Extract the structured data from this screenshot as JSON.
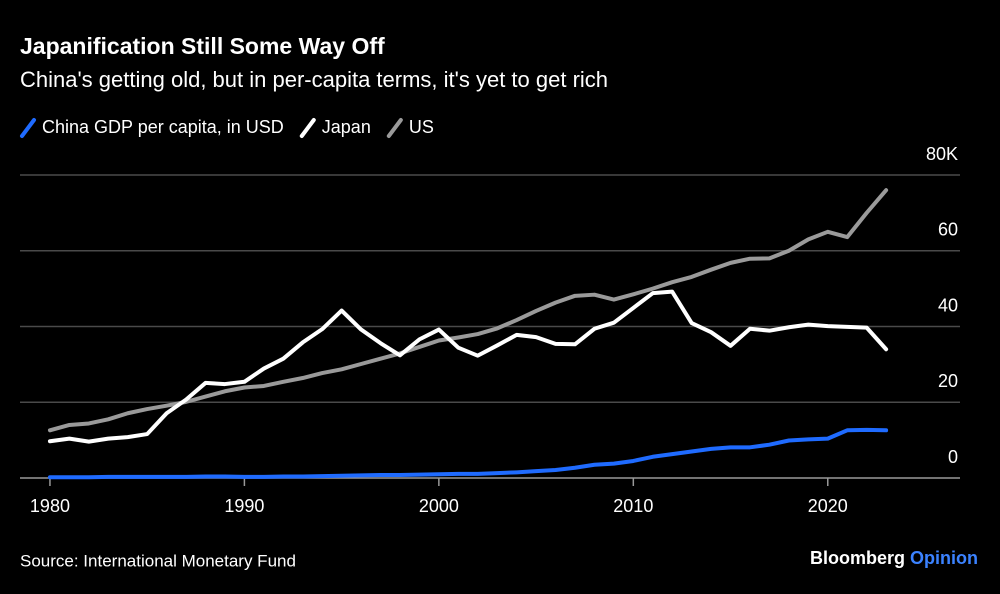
{
  "chart_data": {
    "type": "line",
    "title": "Japanification Still Some Way Off",
    "subtitle": "China's getting old, but in per-capita terms, it's yet to get rich",
    "source": "Source: International Monetary Fund",
    "brand": "Bloomberg",
    "brand_suffix": "Opinion",
    "x": [
      1980,
      1981,
      1982,
      1983,
      1984,
      1985,
      1986,
      1987,
      1988,
      1989,
      1990,
      1991,
      1992,
      1993,
      1994,
      1995,
      1996,
      1997,
      1998,
      1999,
      2000,
      2001,
      2002,
      2003,
      2004,
      2005,
      2006,
      2007,
      2008,
      2009,
      2010,
      2011,
      2012,
      2013,
      2014,
      2015,
      2016,
      2017,
      2018,
      2019,
      2020,
      2021,
      2022,
      2023
    ],
    "series": [
      {
        "name": "China GDP per capita, in USD",
        "color": "#1f6bff",
        "values": [
          0.2,
          0.2,
          0.2,
          0.3,
          0.3,
          0.3,
          0.3,
          0.3,
          0.4,
          0.4,
          0.3,
          0.3,
          0.4,
          0.4,
          0.5,
          0.6,
          0.7,
          0.8,
          0.8,
          0.9,
          1.0,
          1.1,
          1.1,
          1.3,
          1.5,
          1.8,
          2.1,
          2.7,
          3.5,
          3.8,
          4.5,
          5.6,
          6.3,
          7.0,
          7.7,
          8.1,
          8.1,
          8.8,
          9.9,
          10.2,
          10.4,
          12.6,
          12.7,
          12.6
        ]
      },
      {
        "name": "Japan",
        "color": "#ffffff",
        "values": [
          9.7,
          10.4,
          9.6,
          10.4,
          10.8,
          11.6,
          17.1,
          20.7,
          25.1,
          24.8,
          25.4,
          28.9,
          31.5,
          35.8,
          39.3,
          44.2,
          39.2,
          35.6,
          32.4,
          36.6,
          39.2,
          34.4,
          32.3,
          35.0,
          37.8,
          37.2,
          35.4,
          35.3,
          39.4,
          41.0,
          44.9,
          48.8,
          49.2,
          40.9,
          38.5,
          34.9,
          39.4,
          38.9,
          39.8,
          40.5,
          40.1,
          39.9,
          39.7,
          34.0
        ]
      },
      {
        "name": "US",
        "color": "#9a9a9a",
        "values": [
          12.6,
          14.0,
          14.4,
          15.5,
          17.1,
          18.2,
          19.1,
          20.1,
          21.5,
          22.9,
          23.9,
          24.3,
          25.4,
          26.4,
          27.7,
          28.7,
          30.1,
          31.5,
          32.9,
          34.6,
          36.3,
          37.1,
          38.0,
          39.5,
          41.7,
          44.1,
          46.3,
          48.1,
          48.4,
          47.1,
          48.5,
          50.0,
          51.7,
          53.1,
          55.0,
          56.8,
          57.9,
          58.0,
          60.0,
          63.0,
          65.0,
          63.6,
          70.0,
          76.0
        ]
      }
    ],
    "xlim": [
      1978.46,
      2026.8
    ],
    "xticks": [
      1980,
      1990,
      2000,
      2010,
      2020
    ],
    "ylim": [
      0,
      80
    ],
    "yticks": [
      0,
      20,
      40,
      60,
      {
        "value": 80,
        "label": "80K"
      }
    ],
    "grid": true
  }
}
